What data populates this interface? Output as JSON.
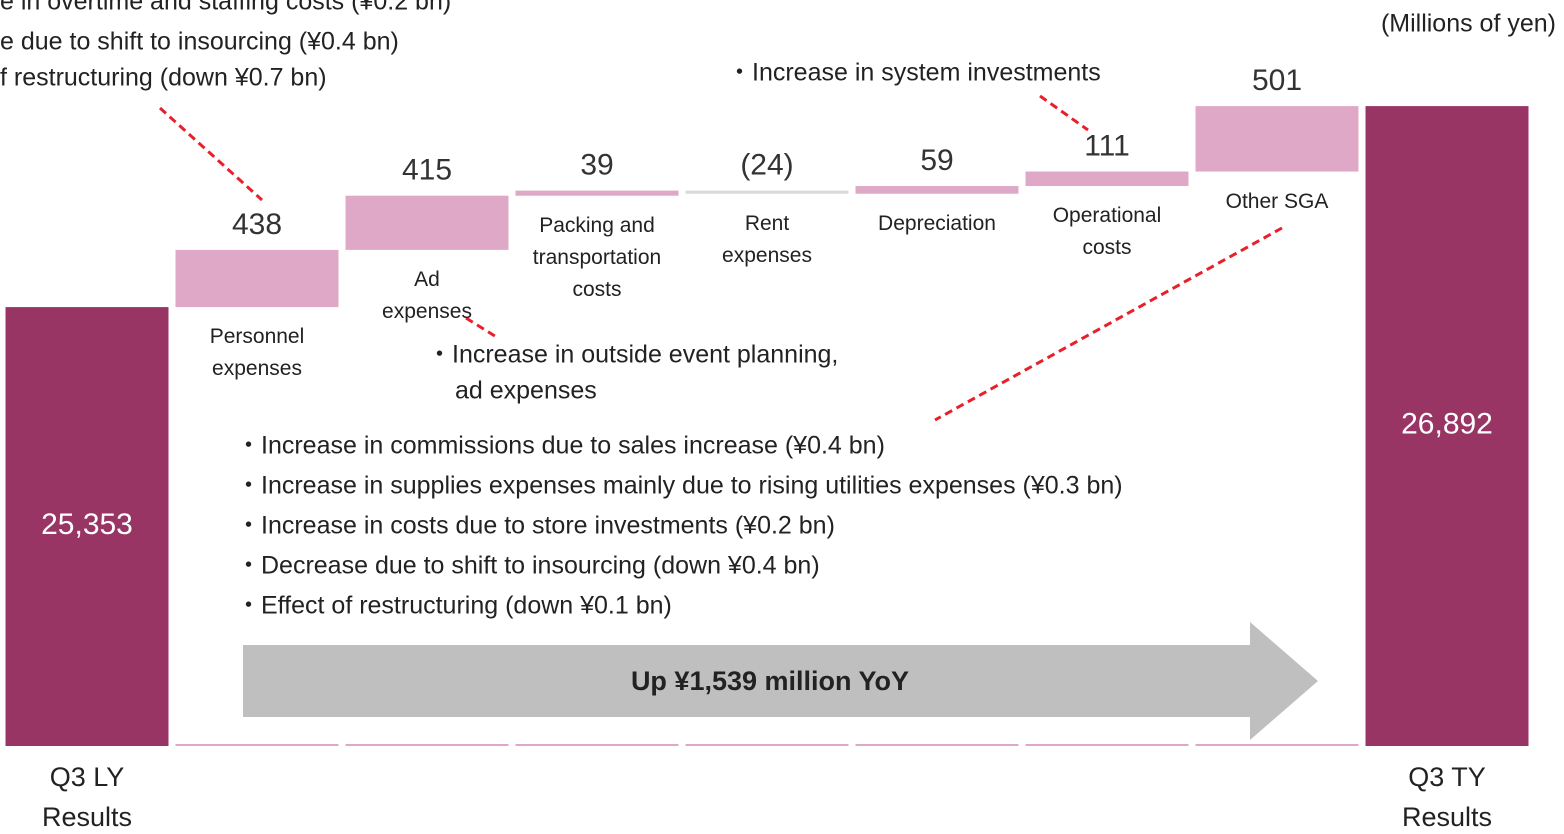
{
  "chart_data": {
    "type": "waterfall",
    "unit_label": "(Millions of yen)",
    "categories": [
      "Q3 LY\nResults",
      "Personnel\nexpenses",
      "Ad\nexpenses",
      "Packing and\ntransportation\ncosts",
      "Rent\nexpenses",
      "Depreciation",
      "Operational\ncosts",
      "Other SGA",
      "Q3 TY\nResults"
    ],
    "values": [
      25353,
      438,
      415,
      39,
      -24,
      59,
      111,
      501,
      26892
    ],
    "value_labels": [
      "25,353",
      "438",
      "415",
      "39",
      "(24)",
      "59",
      "111",
      "501",
      "26,892"
    ],
    "total_color": "#993564",
    "increase_color": "#dfa8c6",
    "decrease_color": "#d9d9d9",
    "ylim": [
      22000,
      27000
    ],
    "annotations": {
      "personnel": [
        "e in overtime and staffing costs (¥0.2 bn)",
        "e due to shift to insourcing (¥0.4 bn)",
        "f restructuring (down ¥0.7 bn)"
      ],
      "operational": "・Increase in system investments",
      "ad": [
        "・Increase in outside event planning,",
        "ad expenses"
      ],
      "other": [
        "・Increase in commissions due to sales increase (¥0.4 bn)",
        "・Increase in supplies expenses mainly due to rising utilities expenses (¥0.3 bn)",
        "・Increase in costs due to store investments (¥0.2 bn)",
        "・Decrease due to shift to insourcing (down ¥0.4 bn)",
        "・Effect of restructuring (down ¥0.1 bn)"
      ],
      "arrow": "Up ¥1,539 million YoY"
    }
  }
}
